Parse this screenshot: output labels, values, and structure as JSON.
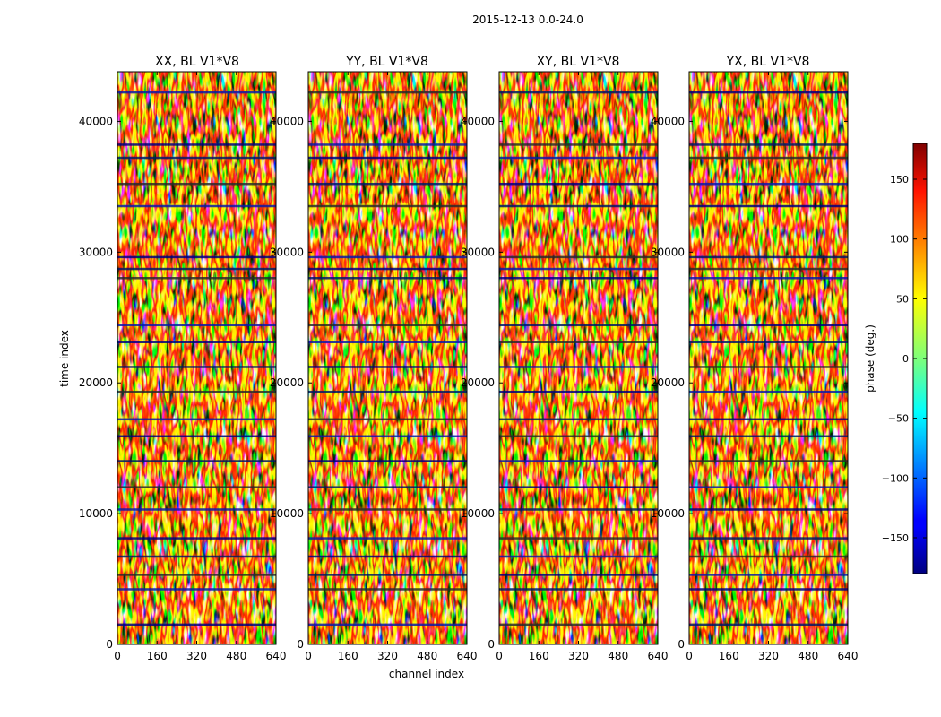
{
  "figure": {
    "suptitle": "2015-12-13 0.0-24.0"
  },
  "chart_data": {
    "type": "heatmap",
    "title": "2015-12-13 0.0-24.0",
    "xlabel": "channel index",
    "ylabel": "time index",
    "xlim": [
      0,
      640
    ],
    "ylim": [
      0,
      43800
    ],
    "x_ticks": [
      0,
      160,
      320,
      480,
      640
    ],
    "y_ticks": [
      0,
      10000,
      20000,
      30000,
      40000
    ],
    "panels": [
      {
        "title": "XX, BL V1*V8",
        "polarization": "XX"
      },
      {
        "title": "YY, BL V1*V8",
        "polarization": "YY"
      },
      {
        "title": "XY, BL V1*V8",
        "polarization": "XY"
      },
      {
        "title": "YX, BL V1*V8",
        "polarization": "YX"
      }
    ],
    "colorbar": {
      "label": "phase (deg.)",
      "colormap": "jet",
      "range": [
        -180,
        180
      ],
      "ticks": [
        -150,
        -100,
        -50,
        0,
        50,
        100,
        150
      ],
      "tick_labels": [
        "−150",
        "−100",
        "−50",
        "0",
        "50",
        "100",
        "150"
      ]
    }
  }
}
